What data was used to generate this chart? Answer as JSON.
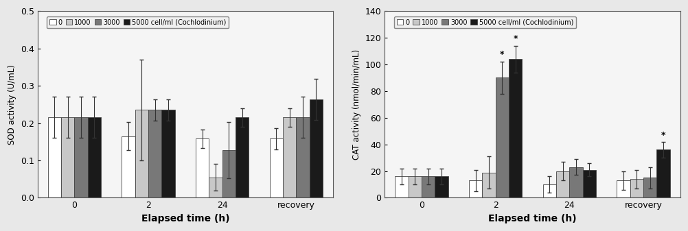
{
  "sod": {
    "ylabel": "SOD activity (U/mL)",
    "xlabel": "Elapsed time (h)",
    "ylim": [
      0,
      0.5
    ],
    "yticks": [
      0,
      0.1,
      0.2,
      0.3,
      0.4,
      0.5
    ],
    "categories": [
      "0",
      "2",
      "24",
      "recovery"
    ],
    "series": {
      "0": [
        0.215,
        0.165,
        0.158,
        0.158
      ],
      "1000": [
        0.215,
        0.235,
        0.055,
        0.215
      ],
      "3000": [
        0.215,
        0.235,
        0.128,
        0.215
      ],
      "5000": [
        0.215,
        0.235,
        0.215,
        0.263
      ]
    },
    "errors": {
      "0": [
        0.055,
        0.037,
        0.025,
        0.028
      ],
      "1000": [
        0.055,
        0.135,
        0.035,
        0.025
      ],
      "3000": [
        0.055,
        0.028,
        0.075,
        0.055
      ],
      "5000": [
        0.055,
        0.028,
        0.025,
        0.055
      ]
    },
    "colors": [
      "#ffffff",
      "#c8c8c8",
      "#787878",
      "#1a1a1a"
    ],
    "legend_labels": [
      "0",
      "1000",
      "3000",
      "5000 cell/ml (Cochlodinium)"
    ]
  },
  "cat": {
    "ylabel": "CAT activity (nmol/min/mL)",
    "xlabel": "Elapsed time (h)",
    "ylim": [
      0,
      140
    ],
    "yticks": [
      0,
      20,
      40,
      60,
      80,
      100,
      120,
      140
    ],
    "categories": [
      "0",
      "2",
      "24",
      "recovery"
    ],
    "series": {
      "0": [
        16,
        13,
        10,
        13
      ],
      "1000": [
        16,
        19,
        20,
        14
      ],
      "3000": [
        16,
        90,
        23,
        15
      ],
      "5000": [
        16,
        104,
        21,
        36
      ]
    },
    "errors": {
      "0": [
        6,
        8,
        6,
        7
      ],
      "1000": [
        6,
        12,
        7,
        7
      ],
      "3000": [
        6,
        12,
        6,
        8
      ],
      "5000": [
        6,
        10,
        5,
        6
      ]
    },
    "colors": [
      "#ffffff",
      "#c8c8c8",
      "#787878",
      "#1a1a1a"
    ],
    "legend_labels": [
      "0",
      "1000",
      "3000",
      "5000 cell/ml (Cochlodinium)"
    ]
  },
  "bar_width": 0.18,
  "edgecolor": "#444444",
  "bg_color": "#e8e8e8",
  "plot_bg": "#f5f5f5"
}
